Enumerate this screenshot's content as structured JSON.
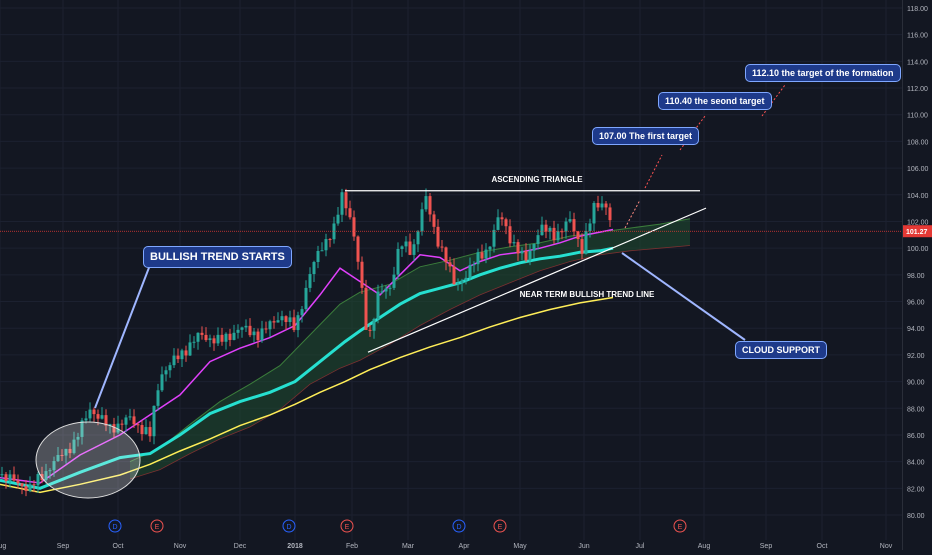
{
  "colors": {
    "background": "#131722",
    "grid": "#1c2130",
    "price_line": "#e53935",
    "price_label_bg": "#e53935",
    "up_candle": "#26a69a",
    "down_candle": "#ef5350",
    "ema_fast": "#e040fb",
    "ema_mid": "#26e0d0",
    "ema_slow": "#ffee58",
    "cloud_fill": "#1f4d2f",
    "cloud_line": "#3b7d3b",
    "callout_bg": "#1e3a8a",
    "trend_line": "#ffffff",
    "target_arrow": "#ff5252"
  },
  "chart_data": {
    "type": "line",
    "y_axis": {
      "range": [
        79.5,
        118.5
      ],
      "ticks": [
        "80.00",
        "82.00",
        "84.00",
        "86.00",
        "88.00",
        "90.00",
        "92.00",
        "94.00",
        "96.00",
        "98.00",
        "100.00",
        "102.00",
        "104.00",
        "106.00",
        "108.00",
        "110.00",
        "112.00",
        "114.00",
        "116.00",
        "118.00"
      ],
      "tick_values": [
        80,
        82,
        84,
        86,
        88,
        90,
        92,
        94,
        96,
        98,
        100,
        102,
        104,
        106,
        108,
        110,
        112,
        114,
        116,
        118
      ]
    },
    "x_axis": {
      "ticks": [
        "Aug",
        "Sep",
        "Oct",
        "Nov",
        "Dec",
        "2018",
        "Feb",
        "Mar",
        "Apr",
        "May",
        "Jun",
        "Jul",
        "Aug",
        "Sep",
        "Oct",
        "Nov"
      ],
      "tick_index": [
        0,
        63,
        118,
        180,
        240,
        295,
        352,
        408,
        464,
        520,
        584,
        640,
        704,
        766,
        822,
        886
      ]
    },
    "last_price": 101.27,
    "last_price_label": "101.27",
    "price_series": {
      "name": "price",
      "points": [
        [
          0,
          83.0
        ],
        [
          30,
          82.0
        ],
        [
          55,
          84.0
        ],
        [
          75,
          85.5
        ],
        [
          90,
          88.0
        ],
        [
          110,
          86.5
        ],
        [
          130,
          87.2
        ],
        [
          150,
          86.0
        ],
        [
          160,
          90.5
        ],
        [
          180,
          92.0
        ],
        [
          200,
          93.5
        ],
        [
          220,
          93.0
        ],
        [
          240,
          94.0
        ],
        [
          260,
          93.5
        ],
        [
          280,
          95.0
        ],
        [
          295,
          94.0
        ],
        [
          310,
          98.0
        ],
        [
          320,
          100.0
        ],
        [
          335,
          101.5
        ],
        [
          342,
          104.0
        ],
        [
          350,
          102.5
        ],
        [
          358,
          99.0
        ],
        [
          368,
          93.0
        ],
        [
          378,
          96.5
        ],
        [
          390,
          97.0
        ],
        [
          400,
          100.5
        ],
        [
          412,
          99.5
        ],
        [
          425,
          104.0
        ],
        [
          435,
          101.0
        ],
        [
          445,
          99.5
        ],
        [
          455,
          97.0
        ],
        [
          465,
          98.0
        ],
        [
          475,
          99.0
        ],
        [
          488,
          100.0
        ],
        [
          500,
          102.5
        ],
        [
          512,
          100.5
        ],
        [
          525,
          99.0
        ],
        [
          540,
          101.5
        ],
        [
          555,
          101.0
        ],
        [
          570,
          102.0
        ],
        [
          582,
          100.0
        ],
        [
          595,
          103.2
        ],
        [
          605,
          103.5
        ],
        [
          613,
          101.3
        ]
      ]
    },
    "ema_fast": {
      "points": [
        [
          0,
          82.8
        ],
        [
          40,
          82.4
        ],
        [
          80,
          84.5
        ],
        [
          120,
          86.0
        ],
        [
          150,
          87.5
        ],
        [
          180,
          89.0
        ],
        [
          210,
          91.5
        ],
        [
          240,
          92.5
        ],
        [
          270,
          93.3
        ],
        [
          295,
          94.2
        ],
        [
          320,
          96.5
        ],
        [
          340,
          98.5
        ],
        [
          360,
          97.5
        ],
        [
          380,
          96.5
        ],
        [
          400,
          98.0
        ],
        [
          420,
          99.5
        ],
        [
          440,
          99.3
        ],
        [
          460,
          98.3
        ],
        [
          480,
          99.0
        ],
        [
          500,
          99.5
        ],
        [
          520,
          99.7
        ],
        [
          540,
          100.0
        ],
        [
          560,
          100.4
        ],
        [
          580,
          100.9
        ],
        [
          600,
          101.2
        ],
        [
          613,
          101.4
        ]
      ]
    },
    "ema_mid": {
      "points": [
        [
          0,
          82.6
        ],
        [
          40,
          82.0
        ],
        [
          80,
          83.2
        ],
        [
          120,
          84.3
        ],
        [
          150,
          84.6
        ],
        [
          180,
          86.0
        ],
        [
          210,
          87.6
        ],
        [
          240,
          88.5
        ],
        [
          270,
          89.2
        ],
        [
          295,
          90.0
        ],
        [
          320,
          91.5
        ],
        [
          345,
          93.0
        ],
        [
          360,
          93.8
        ],
        [
          380,
          94.8
        ],
        [
          400,
          95.8
        ],
        [
          420,
          96.6
        ],
        [
          440,
          97.0
        ],
        [
          460,
          97.4
        ],
        [
          480,
          98.0
        ],
        [
          500,
          98.5
        ],
        [
          520,
          98.9
        ],
        [
          540,
          99.2
        ],
        [
          560,
          99.4
        ],
        [
          580,
          99.7
        ],
        [
          600,
          99.8
        ],
        [
          613,
          100.0
        ]
      ]
    },
    "ema_slow": {
      "points": [
        [
          0,
          82.3
        ],
        [
          40,
          81.7
        ],
        [
          80,
          82.3
        ],
        [
          120,
          83.0
        ],
        [
          150,
          83.8
        ],
        [
          180,
          84.8
        ],
        [
          210,
          85.7
        ],
        [
          240,
          86.7
        ],
        [
          270,
          87.5
        ],
        [
          295,
          88.3
        ],
        [
          320,
          89.2
        ],
        [
          345,
          90.0
        ],
        [
          370,
          90.9
        ],
        [
          400,
          91.8
        ],
        [
          430,
          92.6
        ],
        [
          460,
          93.3
        ],
        [
          490,
          94.1
        ],
        [
          520,
          94.8
        ],
        [
          550,
          95.4
        ],
        [
          580,
          95.9
        ],
        [
          613,
          96.3
        ]
      ]
    },
    "cloud_span_a": {
      "points": [
        [
          130,
          84.0
        ],
        [
          160,
          85.0
        ],
        [
          190,
          86.8
        ],
        [
          220,
          88.5
        ],
        [
          250,
          89.8
        ],
        [
          280,
          91.2
        ],
        [
          310,
          93.5
        ],
        [
          340,
          95.8
        ],
        [
          360,
          96.7
        ],
        [
          390,
          97.3
        ],
        [
          420,
          98.6
        ],
        [
          450,
          99.1
        ],
        [
          480,
          99.7
        ],
        [
          510,
          100.1
        ],
        [
          540,
          100.4
        ],
        [
          570,
          100.9
        ],
        [
          600,
          101.2
        ],
        [
          630,
          101.5
        ],
        [
          660,
          101.8
        ],
        [
          690,
          102.2
        ]
      ]
    },
    "cloud_span_b": {
      "points": [
        [
          130,
          82.7
        ],
        [
          160,
          83.4
        ],
        [
          190,
          84.6
        ],
        [
          220,
          85.7
        ],
        [
          250,
          86.6
        ],
        [
          280,
          87.9
        ],
        [
          310,
          89.8
        ],
        [
          340,
          91.0
        ],
        [
          360,
          91.6
        ],
        [
          390,
          92.8
        ],
        [
          420,
          94.2
        ],
        [
          450,
          95.4
        ],
        [
          480,
          96.5
        ],
        [
          510,
          97.4
        ],
        [
          540,
          98.3
        ],
        [
          570,
          99.0
        ],
        [
          600,
          99.5
        ],
        [
          630,
          99.8
        ],
        [
          660,
          100.0
        ],
        [
          690,
          100.2
        ]
      ]
    },
    "annotations": {
      "ascending_triangle": "ASCENDING TRIANGLE",
      "near_term_trend": "NEAR TERM BULLISH TREND LINE",
      "bullish_trend": "BULLISH TREND STARTS",
      "cloud_support": "CLOUD SUPPORT",
      "target1": "107.00  The first target",
      "target2": "110.40 the seond target",
      "target3": "112.10 the target of the formation"
    },
    "event_markers": [
      {
        "label": "D",
        "index": 115,
        "color": "#2962ff"
      },
      {
        "label": "E",
        "index": 157,
        "color": "#ef5350"
      },
      {
        "label": "D",
        "index": 289,
        "color": "#2962ff"
      },
      {
        "label": "E",
        "index": 347,
        "color": "#ef5350"
      },
      {
        "label": "D",
        "index": 459,
        "color": "#2962ff"
      },
      {
        "label": "E",
        "index": 500,
        "color": "#ef5350"
      },
      {
        "label": "E",
        "index": 680,
        "color": "#ef5350"
      }
    ]
  }
}
